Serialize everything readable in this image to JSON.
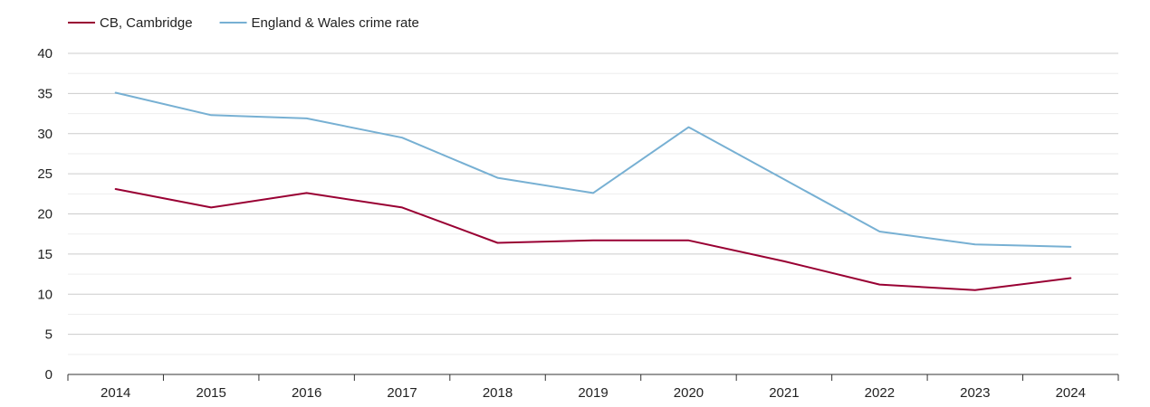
{
  "chart_data": {
    "type": "line",
    "title": "",
    "xlabel": "",
    "ylabel": "",
    "categories": [
      "2014",
      "2015",
      "2016",
      "2017",
      "2018",
      "2019",
      "2020",
      "2021",
      "2022",
      "2023",
      "2024"
    ],
    "ylim": [
      0,
      40
    ],
    "yticks": [
      0,
      5,
      10,
      15,
      20,
      25,
      30,
      35,
      40
    ],
    "grid": true,
    "legend_position": "top-left",
    "series": [
      {
        "name": "CB, Cambridge",
        "color": "#990033",
        "values": [
          23.1,
          20.8,
          22.6,
          20.8,
          16.4,
          16.7,
          16.7,
          14.1,
          11.2,
          10.5,
          12.0
        ]
      },
      {
        "name": "England & Wales crime rate",
        "color": "#77b0d3",
        "values": [
          35.1,
          32.3,
          31.9,
          29.5,
          24.5,
          22.6,
          30.8,
          24.3,
          17.8,
          16.2,
          15.9
        ]
      }
    ]
  }
}
